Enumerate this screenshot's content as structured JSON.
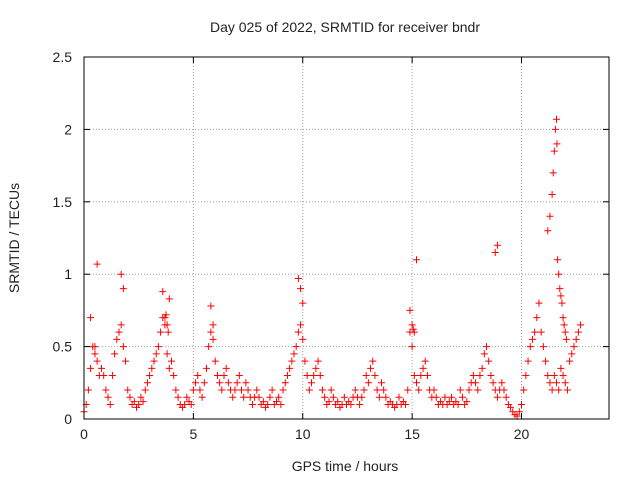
{
  "chart_data": {
    "type": "scatter",
    "title": "Day 025 of 2022, SRMTID for receiver bndr",
    "xlabel": "GPS time / hours",
    "ylabel": "SRMTID / TECUs",
    "xlim": [
      0,
      24
    ],
    "ylim": [
      0,
      2.5
    ],
    "xticks": [
      0,
      5,
      10,
      15,
      20
    ],
    "yticks": [
      0,
      0.5,
      1,
      1.5,
      2,
      2.5
    ],
    "xtick_labels": [
      "0",
      "5",
      "10",
      "15",
      "20"
    ],
    "ytick_labels": [
      "0",
      "0.5",
      "1",
      "1.5",
      "2",
      "2.5"
    ],
    "grid": true,
    "marker": "+",
    "series": [
      {
        "name": "SRMTID",
        "color": "#ff0000",
        "x": [
          0.0,
          0.1,
          0.2,
          0.3,
          0.4,
          0.5,
          0.6,
          0.7,
          0.8,
          0.9,
          1.0,
          1.1,
          1.2,
          1.3,
          1.4,
          1.5,
          1.6,
          1.7,
          1.8,
          1.9,
          2.0,
          2.1,
          2.2,
          2.3,
          2.4,
          2.5,
          2.6,
          2.7,
          2.8,
          2.9,
          3.0,
          3.1,
          3.2,
          3.3,
          3.4,
          3.5,
          3.6,
          3.7,
          3.8,
          3.9,
          4.0,
          4.1,
          4.2,
          4.3,
          4.4,
          4.5,
          4.6,
          4.7,
          4.8,
          4.9,
          5.0,
          5.1,
          5.2,
          5.3,
          5.4,
          5.5,
          5.6,
          5.7,
          5.8,
          5.9,
          6.0,
          6.1,
          6.2,
          6.3,
          6.4,
          6.5,
          6.6,
          6.7,
          6.8,
          6.9,
          7.0,
          7.1,
          7.2,
          7.3,
          7.4,
          7.5,
          7.6,
          7.7,
          7.8,
          7.9,
          8.0,
          8.1,
          8.2,
          8.3,
          8.4,
          8.5,
          8.6,
          8.7,
          8.8,
          8.9,
          9.0,
          9.1,
          9.2,
          9.3,
          9.4,
          9.5,
          9.6,
          9.7,
          9.8,
          9.9,
          10.0,
          10.1,
          10.2,
          10.3,
          10.4,
          10.5,
          10.6,
          10.7,
          10.8,
          10.9,
          11.0,
          11.1,
          11.2,
          11.3,
          11.4,
          11.5,
          11.6,
          11.7,
          11.8,
          11.9,
          12.0,
          12.1,
          12.2,
          12.3,
          12.4,
          12.5,
          12.6,
          12.7,
          12.8,
          12.9,
          13.0,
          13.1,
          13.2,
          13.3,
          13.4,
          13.5,
          13.6,
          13.7,
          13.8,
          13.9,
          14.0,
          14.1,
          14.2,
          14.3,
          14.4,
          14.5,
          14.6,
          14.7,
          14.8,
          14.9,
          15.0,
          15.1,
          15.2,
          15.3,
          15.4,
          15.5,
          15.6,
          15.7,
          15.8,
          15.9,
          16.0,
          16.1,
          16.2,
          16.3,
          16.4,
          16.5,
          16.6,
          16.7,
          16.8,
          16.9,
          17.0,
          17.1,
          17.2,
          17.3,
          17.4,
          17.5,
          17.6,
          17.7,
          17.8,
          17.9,
          18.0,
          18.1,
          18.2,
          18.3,
          18.4,
          18.5,
          18.6,
          18.7,
          18.8,
          18.9,
          19.0,
          19.1,
          19.2,
          19.3,
          19.4,
          19.5,
          19.6,
          19.7,
          19.8,
          19.9,
          20.0,
          20.1,
          20.2,
          20.3,
          20.4,
          20.5,
          20.6,
          20.7,
          20.8,
          20.9,
          21.0,
          21.1,
          21.2,
          21.3,
          21.4,
          21.5,
          21.6,
          21.7,
          21.8,
          21.9,
          22.0,
          22.1,
          22.2,
          22.3,
          22.4,
          22.5,
          22.6,
          22.7,
          0.3,
          0.5,
          0.6,
          1.7,
          1.8,
          3.6,
          3.7,
          3.75,
          3.8,
          3.85,
          3.9,
          5.8,
          5.9,
          9.8,
          9.9,
          10.0,
          14.9,
          15.0,
          15.05,
          15.1,
          15.2,
          18.8,
          18.9,
          21.2,
          21.3,
          21.4,
          21.45,
          21.5,
          21.55,
          21.6,
          21.62,
          21.65,
          21.7,
          21.75,
          21.8,
          21.85,
          21.9,
          21.95,
          22.0,
          22.05
        ],
        "y": [
          0.05,
          0.1,
          0.2,
          0.35,
          0.5,
          0.45,
          0.4,
          0.3,
          0.35,
          0.3,
          0.2,
          0.15,
          0.1,
          0.3,
          0.45,
          0.55,
          0.6,
          0.65,
          0.5,
          0.4,
          0.2,
          0.15,
          0.1,
          0.12,
          0.08,
          0.1,
          0.15,
          0.12,
          0.2,
          0.25,
          0.3,
          0.35,
          0.4,
          0.45,
          0.5,
          0.6,
          0.7,
          0.65,
          0.45,
          0.35,
          0.4,
          0.3,
          0.2,
          0.15,
          0.1,
          0.08,
          0.1,
          0.15,
          0.12,
          0.1,
          0.2,
          0.25,
          0.3,
          0.2,
          0.15,
          0.25,
          0.35,
          0.5,
          0.6,
          0.55,
          0.4,
          0.3,
          0.25,
          0.2,
          0.3,
          0.35,
          0.25,
          0.2,
          0.15,
          0.2,
          0.25,
          0.3,
          0.2,
          0.15,
          0.25,
          0.2,
          0.15,
          0.1,
          0.15,
          0.2,
          0.15,
          0.1,
          0.12,
          0.08,
          0.1,
          0.15,
          0.2,
          0.1,
          0.12,
          0.15,
          0.1,
          0.2,
          0.25,
          0.3,
          0.35,
          0.4,
          0.45,
          0.5,
          0.6,
          0.65,
          0.55,
          0.4,
          0.3,
          0.2,
          0.25,
          0.3,
          0.35,
          0.4,
          0.3,
          0.2,
          0.15,
          0.1,
          0.12,
          0.2,
          0.15,
          0.1,
          0.12,
          0.08,
          0.1,
          0.15,
          0.1,
          0.12,
          0.1,
          0.15,
          0.2,
          0.15,
          0.1,
          0.15,
          0.2,
          0.3,
          0.25,
          0.35,
          0.4,
          0.3,
          0.2,
          0.15,
          0.25,
          0.2,
          0.15,
          0.1,
          0.12,
          0.1,
          0.08,
          0.1,
          0.15,
          0.1,
          0.12,
          0.1,
          0.2,
          0.6,
          0.5,
          0.3,
          0.25,
          0.2,
          0.3,
          0.35,
          0.4,
          0.3,
          0.2,
          0.15,
          0.2,
          0.15,
          0.1,
          0.12,
          0.1,
          0.15,
          0.1,
          0.12,
          0.15,
          0.1,
          0.12,
          0.1,
          0.2,
          0.15,
          0.1,
          0.12,
          0.2,
          0.25,
          0.3,
          0.25,
          0.2,
          0.3,
          0.35,
          0.45,
          0.5,
          0.4,
          0.3,
          0.25,
          0.2,
          0.15,
          0.2,
          0.25,
          0.2,
          0.15,
          0.1,
          0.08,
          0.05,
          0.03,
          0.02,
          0.05,
          0.1,
          0.2,
          0.3,
          0.4,
          0.5,
          0.55,
          0.6,
          0.7,
          0.8,
          0.6,
          0.5,
          0.4,
          0.3,
          0.25,
          0.2,
          0.3,
          0.25,
          0.2,
          0.35,
          0.3,
          0.25,
          0.2,
          0.4,
          0.45,
          0.5,
          0.55,
          0.6,
          0.65,
          0.7,
          0.5,
          1.07,
          1.0,
          0.9,
          0.88,
          0.7,
          0.72,
          0.65,
          0.6,
          0.83,
          0.78,
          0.65,
          0.97,
          0.9,
          0.8,
          0.75,
          0.65,
          0.62,
          0.6,
          1.1,
          1.15,
          1.2,
          1.3,
          1.4,
          1.55,
          1.7,
          1.85,
          2.0,
          2.07,
          1.9,
          1.1,
          1.0,
          0.9,
          0.85,
          0.8,
          0.7,
          0.65,
          0.6,
          0.55
        ]
      }
    ]
  }
}
